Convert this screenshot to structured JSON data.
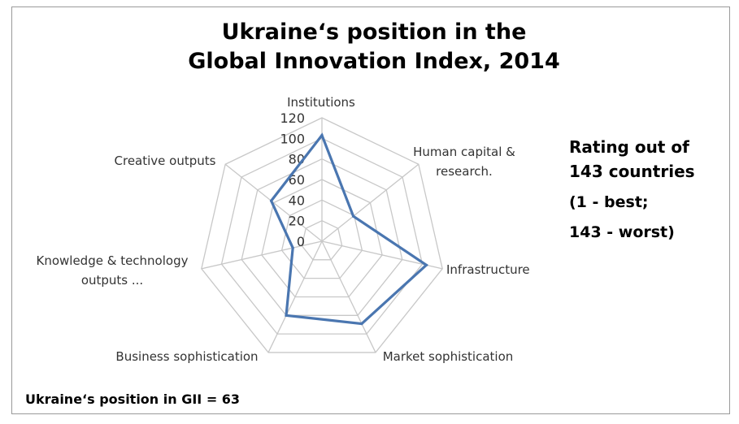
{
  "chart": {
    "title_line1": "Ukraine‘s position in the",
    "title_line2": "Global Innovation Index, 2014",
    "side_line1": "Rating out of",
    "side_line2": "143 countries",
    "side_line3": "(1 - best;",
    "side_line4": "143 - worst)",
    "footer": "Ukraine‘s position in GII = 63"
  },
  "chart_data": {
    "type": "radar",
    "title": "Ukraine‘s position in the Global Innovation Index, 2014",
    "categories": [
      "Institutions",
      "Human capital & research.",
      "Infrastructure",
      "Market sophistication",
      "Business sophistication",
      "Knowledge & technology outputs ...",
      "Creative outputs"
    ],
    "category_lines": [
      [
        "Institutions"
      ],
      [
        "Human capital &",
        "research."
      ],
      [
        "Infrastructure"
      ],
      [
        "Market sophistication"
      ],
      [
        "Business sophistication"
      ],
      [
        "Knowledge & technology",
        "outputs ..."
      ],
      [
        "Creative outputs"
      ]
    ],
    "values": [
      103,
      39,
      104,
      89,
      80,
      29,
      63
    ],
    "rlim": [
      0,
      120
    ],
    "ticks": [
      0,
      20,
      40,
      60,
      80,
      100,
      120
    ],
    "grid": true,
    "series_color": "#4a76b0",
    "grid_color": "#c8c8c8"
  }
}
